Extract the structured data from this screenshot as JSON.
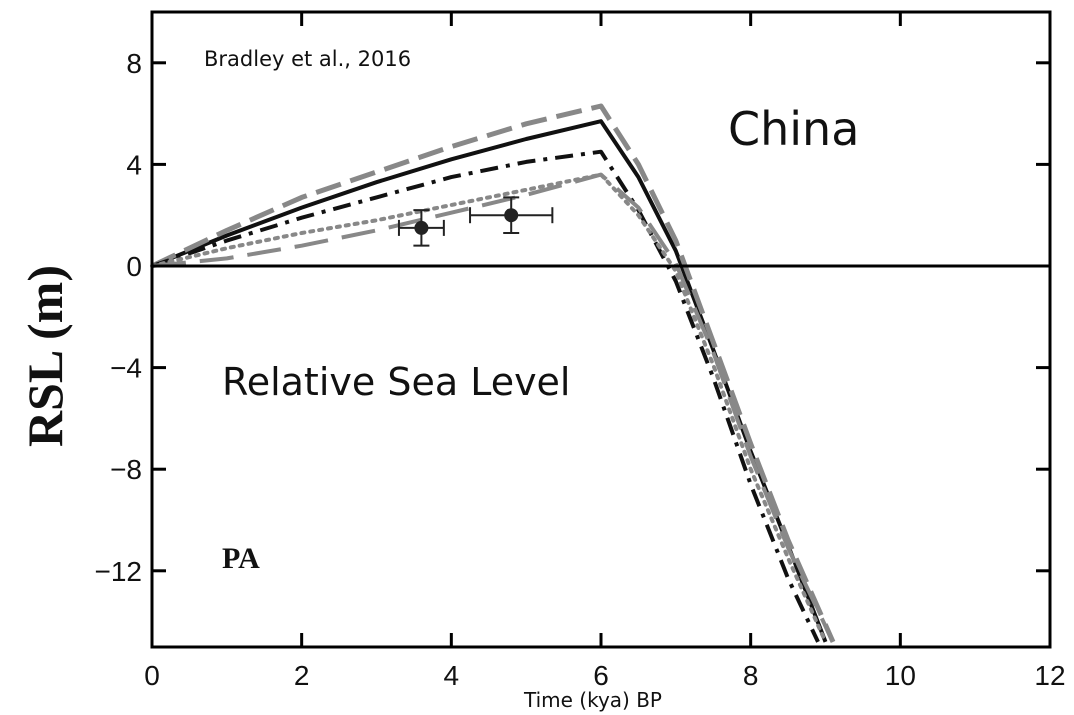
{
  "chart_data": {
    "type": "line",
    "xlabel": "Time (kya) BP",
    "ylabel": "RSL (m)",
    "xlim": [
      0,
      12
    ],
    "ylim": [
      -15,
      10
    ],
    "xticks": [
      "0",
      "2",
      "4",
      "6",
      "8",
      "10",
      "12"
    ],
    "yticks": [
      "8",
      "4",
      "0",
      "−4",
      "−8",
      "−12"
    ],
    "grid": false,
    "annotations": {
      "citation": "Bradley et al., 2016",
      "region": "China",
      "subject": "Relative Sea Level",
      "panel": "PA"
    },
    "series": [
      {
        "style": "solid",
        "color": "#111111",
        "x": [
          0,
          1,
          2,
          3,
          4,
          5,
          6,
          6.5,
          7,
          7.5,
          8,
          8.5,
          9
        ],
        "y": [
          0,
          1.2,
          2.3,
          3.3,
          4.2,
          5.0,
          5.7,
          3.5,
          0.6,
          -3.3,
          -7.3,
          -11.0,
          -14.8
        ]
      },
      {
        "style": "dash",
        "color": "#888888",
        "x": [
          0,
          1,
          2,
          3,
          4,
          5,
          6,
          6.5,
          7,
          7.5,
          8,
          8.5,
          9.1
        ],
        "y": [
          0,
          1.4,
          2.7,
          3.7,
          4.7,
          5.6,
          6.3,
          4.0,
          1.0,
          -3.0,
          -7.0,
          -10.8,
          -14.8
        ]
      },
      {
        "style": "dash-dot",
        "color": "#111111",
        "x": [
          0,
          1,
          2,
          3,
          4,
          5,
          6,
          6.5,
          7,
          7.5,
          8,
          8.5,
          8.9
        ],
        "y": [
          0,
          1.0,
          1.9,
          2.7,
          3.5,
          4.1,
          4.5,
          2.2,
          -0.6,
          -4.4,
          -8.6,
          -12.3,
          -14.8
        ]
      },
      {
        "style": "dot",
        "color": "#888888",
        "x": [
          0,
          1,
          2,
          3,
          4,
          5,
          6,
          6.5,
          7,
          7.5,
          8,
          8.5,
          9.0
        ],
        "y": [
          0,
          0.7,
          1.3,
          1.8,
          2.4,
          3.0,
          3.6,
          2.0,
          -0.2,
          -3.9,
          -8.0,
          -11.5,
          -14.8
        ]
      },
      {
        "style": "long-dash",
        "color": "#888888",
        "x": [
          0,
          1,
          2,
          3,
          4,
          5,
          6,
          6.5,
          7,
          7.5,
          8,
          8.5,
          9.1
        ],
        "y": [
          0,
          0.3,
          0.8,
          1.4,
          2.1,
          2.8,
          3.6,
          2.3,
          0.1,
          -3.4,
          -7.5,
          -11.1,
          -14.8
        ]
      }
    ],
    "observations": [
      {
        "x": 3.6,
        "y": 1.5,
        "xerr": 0.3,
        "yerr": 0.7
      },
      {
        "x": 4.8,
        "y": 2.0,
        "xerr": 0.55,
        "yerr": 0.7
      }
    ]
  }
}
